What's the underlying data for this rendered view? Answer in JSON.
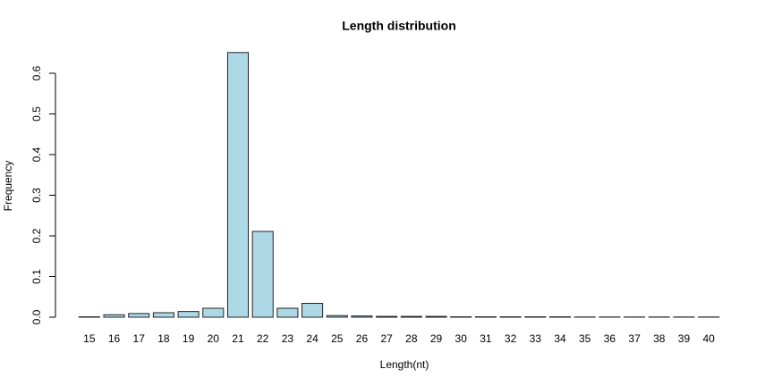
{
  "chart_data": {
    "type": "bar",
    "title": "Length distribution",
    "x_label": "Length(nt)",
    "y_label": "Frequency",
    "categories": [
      "15",
      "16",
      "17",
      "18",
      "19",
      "20",
      "21",
      "22",
      "23",
      "24",
      "25",
      "26",
      "27",
      "28",
      "29",
      "30",
      "31",
      "32",
      "33",
      "34",
      "35",
      "36",
      "37",
      "38",
      "39",
      "40"
    ],
    "values": [
      0.001,
      0.006,
      0.009,
      0.011,
      0.014,
      0.022,
      0.651,
      0.211,
      0.022,
      0.034,
      0.004,
      0.003,
      0.002,
      0.002,
      0.002,
      0.001,
      0.001,
      0.001,
      0.001,
      0.001,
      0.0005,
      0.0005,
      0.0005,
      0.0005,
      0.0005,
      0.0005
    ],
    "color": "#add8e6",
    "ylim": [
      0,
      0.66
    ],
    "yticks": [
      {
        "value": 0,
        "label": "0.0"
      },
      0.1,
      0.2,
      0.3,
      0.4,
      0.5,
      0.6
    ]
  }
}
